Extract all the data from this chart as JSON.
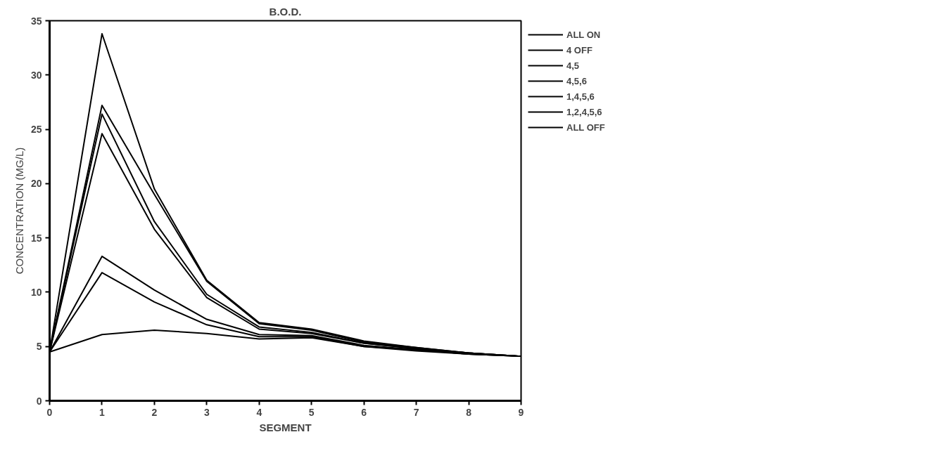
{
  "chart_data": {
    "type": "line",
    "title": "B.O.D.",
    "xlabel": "SEGMENT",
    "ylabel": "CONCENTRATION (MG/L)",
    "x": [
      0,
      1,
      2,
      3,
      4,
      5,
      6,
      7,
      8,
      9
    ],
    "series": [
      {
        "name": "ALL ON",
        "color": "#000000",
        "values": [
          4.5,
          6.1,
          6.5,
          6.2,
          5.7,
          5.8,
          5.0,
          4.6,
          4.3,
          4.1
        ]
      },
      {
        "name": "4 OFF",
        "color": "#000000",
        "values": [
          4.5,
          11.8,
          9.1,
          7.0,
          5.9,
          5.9,
          5.0,
          4.7,
          4.3,
          4.1
        ]
      },
      {
        "name": "4,5",
        "color": "#000000",
        "values": [
          4.5,
          13.3,
          10.2,
          7.5,
          6.1,
          6.0,
          5.1,
          4.7,
          4.3,
          4.1
        ]
      },
      {
        "name": "4,5,6",
        "color": "#000000",
        "values": [
          4.5,
          24.6,
          15.8,
          9.5,
          6.6,
          6.2,
          5.3,
          4.8,
          4.4,
          4.1
        ]
      },
      {
        "name": "1,4,5,6",
        "color": "#000000",
        "values": [
          4.5,
          26.4,
          16.5,
          9.8,
          6.8,
          6.3,
          5.3,
          4.8,
          4.4,
          4.1
        ]
      },
      {
        "name": "1,2,4,5,6",
        "color": "#000000",
        "values": [
          4.5,
          27.2,
          19.0,
          11.0,
          7.1,
          6.5,
          5.4,
          4.9,
          4.4,
          4.1
        ]
      },
      {
        "name": "ALL OFF",
        "color": "#000000",
        "values": [
          4.5,
          33.8,
          19.5,
          11.1,
          7.2,
          6.6,
          5.5,
          4.9,
          4.4,
          4.1
        ]
      }
    ],
    "xlim": [
      0,
      9
    ],
    "xticks": [
      0,
      1,
      2,
      3,
      4,
      5,
      6,
      7,
      8,
      9
    ],
    "ylim": [
      0,
      35
    ],
    "yticks": [
      0,
      5,
      10,
      15,
      20,
      25,
      30,
      35
    ],
    "grid": false,
    "legend": "top right",
    "marker": "none",
    "line_style": "solid"
  }
}
